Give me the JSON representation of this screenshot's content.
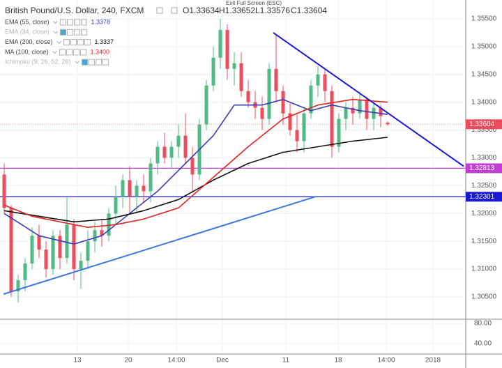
{
  "header": {
    "title": "British Pound/U.S. Dollar, 240, FXCM",
    "ohlc": [
      "O1.33634",
      "H1.33652",
      "L1.33576",
      "C1.33604"
    ],
    "tooltip": "Exit Full Screen (ESC)"
  },
  "chart_data": [
    {
      "type": "candlestick",
      "open": [
        1.327,
        1.321,
        1.306,
        1.308,
        1.311,
        1.316,
        1.3135,
        1.31,
        1.316,
        1.312,
        1.318,
        1.31,
        1.3115,
        1.315,
        1.317,
        1.316,
        1.32,
        1.323,
        1.326,
        1.323,
        1.325,
        1.324,
        1.329,
        1.332,
        1.33,
        1.332,
        1.334,
        1.33,
        1.327,
        1.336,
        1.343,
        1.348,
        1.353,
        1.346,
        1.347,
        1.342,
        1.34,
        1.339,
        1.337,
        1.346,
        1.342,
        1.338,
        1.335,
        1.333,
        1.338,
        1.343,
        1.345,
        1.342,
        1.332,
        1.337,
        1.339,
        1.338,
        1.3405,
        1.337,
        1.339,
        1.33634
      ],
      "high": [
        1.329,
        1.3215,
        1.309,
        1.312,
        1.3175,
        1.318,
        1.315,
        1.317,
        1.317,
        1.323,
        1.319,
        1.313,
        1.317,
        1.3185,
        1.319,
        1.321,
        1.325,
        1.327,
        1.3285,
        1.326,
        1.327,
        1.33,
        1.333,
        1.3345,
        1.333,
        1.336,
        1.338,
        1.332,
        1.337,
        1.344,
        1.35,
        1.355,
        1.354,
        1.349,
        1.349,
        1.344,
        1.342,
        1.341,
        1.347,
        1.352,
        1.343,
        1.34,
        1.338,
        1.339,
        1.344,
        1.3465,
        1.346,
        1.343,
        1.338,
        1.34,
        1.341,
        1.342,
        1.341,
        1.34,
        1.3395,
        1.33652
      ],
      "low": [
        1.32,
        1.305,
        1.304,
        1.306,
        1.31,
        1.312,
        1.3085,
        1.309,
        1.31,
        1.311,
        1.308,
        1.3065,
        1.31,
        1.313,
        1.314,
        1.315,
        1.318,
        1.321,
        1.32,
        1.32,
        1.322,
        1.322,
        1.327,
        1.329,
        1.328,
        1.33,
        1.329,
        1.324,
        1.326,
        1.335,
        1.342,
        1.346,
        1.344,
        1.343,
        1.341,
        1.339,
        1.337,
        1.335,
        1.336,
        1.34,
        1.336,
        1.334,
        1.331,
        1.331,
        1.337,
        1.341,
        1.34,
        1.33,
        1.331,
        1.335,
        1.336,
        1.337,
        1.335,
        1.335,
        1.3355,
        1.33576
      ],
      "close": [
        1.321,
        1.306,
        1.308,
        1.311,
        1.316,
        1.3135,
        1.31,
        1.316,
        1.312,
        1.318,
        1.31,
        1.3115,
        1.315,
        1.317,
        1.316,
        1.32,
        1.323,
        1.326,
        1.323,
        1.325,
        1.324,
        1.329,
        1.332,
        1.33,
        1.332,
        1.334,
        1.33,
        1.327,
        1.336,
        1.343,
        1.348,
        1.353,
        1.346,
        1.347,
        1.342,
        1.34,
        1.339,
        1.337,
        1.346,
        1.342,
        1.338,
        1.335,
        1.333,
        1.338,
        1.343,
        1.345,
        1.342,
        1.332,
        1.337,
        1.339,
        1.338,
        1.3405,
        1.337,
        1.339,
        1.3375,
        1.33604
      ],
      "up_color": "#53b987",
      "down_color": "#eb4d5c",
      "xlim": [
        -0.6,
        66.2
      ],
      "xticks": [
        {
          "value": 10.5,
          "label": "13"
        },
        {
          "value": 17.8,
          "label": "20"
        },
        {
          "value": 24.7,
          "label": "14:00"
        },
        {
          "value": 31.3,
          "label": "Dec"
        },
        {
          "value": 40.4,
          "label": "11"
        },
        {
          "value": 47.9,
          "label": "18"
        },
        {
          "value": 54.8,
          "label": "14:00"
        },
        {
          "value": 61.5,
          "label": "2018"
        }
      ],
      "ylim": [
        1.30099,
        1.35838
      ],
      "yticks": [
        {
          "value": 1.305,
          "label": "1.30500"
        },
        {
          "value": 1.31,
          "label": "1.31000"
        },
        {
          "value": 1.315,
          "label": "1.31500"
        },
        {
          "value": 1.32,
          "label": "1.32000"
        },
        {
          "value": 1.325,
          "label": "1.32500"
        },
        {
          "value": 1.33,
          "label": "1.33000"
        },
        {
          "value": 1.335,
          "label": "1.33500"
        },
        {
          "value": 1.34,
          "label": "1.34000"
        },
        {
          "value": 1.345,
          "label": "1.34500"
        },
        {
          "value": 1.35,
          "label": "1.35000"
        },
        {
          "value": 1.355,
          "label": "1.35500"
        }
      ],
      "grid": true,
      "indicators": [
        {
          "name": "EMA (55, close)",
          "value_label": "1.3378",
          "color": "#3c3cb4",
          "x": [
            0,
            5,
            10,
            14,
            18,
            22,
            26,
            30,
            33,
            37,
            40,
            44,
            47,
            51,
            55
          ],
          "values": [
            1.32,
            1.316,
            1.3145,
            1.316,
            1.32,
            1.324,
            1.329,
            1.334,
            1.3395,
            1.3395,
            1.3405,
            1.3385,
            1.3395,
            1.3385,
            1.3378
          ]
        },
        {
          "name": "EMA (34, close)"
        },
        {
          "name": "EMA (200, close)",
          "value_label": "1.3337",
          "color": "#111111",
          "x": [
            0,
            5,
            10,
            15,
            20,
            25,
            30,
            35,
            40,
            45,
            50,
            55
          ],
          "values": [
            1.3205,
            1.3195,
            1.3185,
            1.319,
            1.3205,
            1.3225,
            1.326,
            1.329,
            1.331,
            1.332,
            1.333,
            1.3337
          ]
        },
        {
          "name": "MA (100, close)",
          "value_label": "1.3400",
          "color": "#e02424",
          "x": [
            0,
            4,
            8,
            12,
            16,
            20,
            25,
            30,
            35,
            40,
            45,
            50,
            55
          ],
          "values": [
            1.3215,
            1.3195,
            1.3185,
            1.3175,
            1.318,
            1.319,
            1.321,
            1.3265,
            1.332,
            1.337,
            1.3395,
            1.3405,
            1.34
          ]
        },
        {
          "name": "Ichimoku (9, 26, 52, 26)"
        }
      ],
      "trendlines": [
        {
          "color": "#1a1ad6",
          "x": [
            38.6,
            65.9
          ],
          "values": [
            1.3525,
            1.3285
          ]
        },
        {
          "color": "#3a78dc",
          "x": [
            -0.1,
            44.6
          ],
          "values": [
            1.3055,
            1.323
          ]
        }
      ],
      "price_lines": [
        {
          "value": 1.32813,
          "label": "1.32813",
          "color": "#c040d0"
        },
        {
          "value": 1.32301,
          "label": "1.32301",
          "color": "#1a1ad6"
        }
      ],
      "last_price": {
        "value": 1.33604,
        "label": "1.33604",
        "color": "#eb4d5c"
      }
    },
    {
      "type": "indicator-pane",
      "ylim": [
        19.3,
        88.3
      ],
      "yticks": [
        {
          "value": 80,
          "label": "80.00"
        },
        {
          "value": 40,
          "label": "40.00"
        }
      ]
    }
  ]
}
